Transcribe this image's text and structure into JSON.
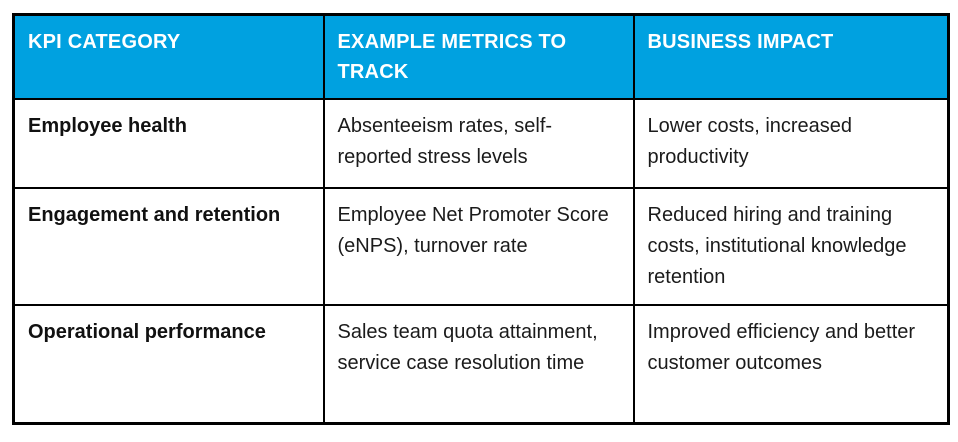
{
  "table": {
    "columns": [
      {
        "label": "KPI CATEGORY"
      },
      {
        "label": "EXAMPLE METRICS TO TRACK"
      },
      {
        "label": "BUSINESS IMPACT"
      }
    ],
    "rows": [
      {
        "category": "Employee health",
        "metrics": "Absenteeism rates, self-reported stress levels",
        "impact": "Lower costs, increased productivity"
      },
      {
        "category": "Engagement and retention",
        "metrics": "Employee Net Promoter Score (eNPS), turnover rate",
        "impact": "Reduced hiring and training costs, institutional knowledge retention"
      },
      {
        "category": "Operational performance",
        "metrics": "Sales team quota attainment, service case resolution time",
        "impact": "Improved efficiency and better customer outcomes"
      }
    ],
    "colors": {
      "header_bg": "#00A1E0",
      "header_text": "#FFFFFF",
      "border": "#000000",
      "body_text": "#1B1B1B",
      "page_bg": "#FFFFFF"
    }
  }
}
